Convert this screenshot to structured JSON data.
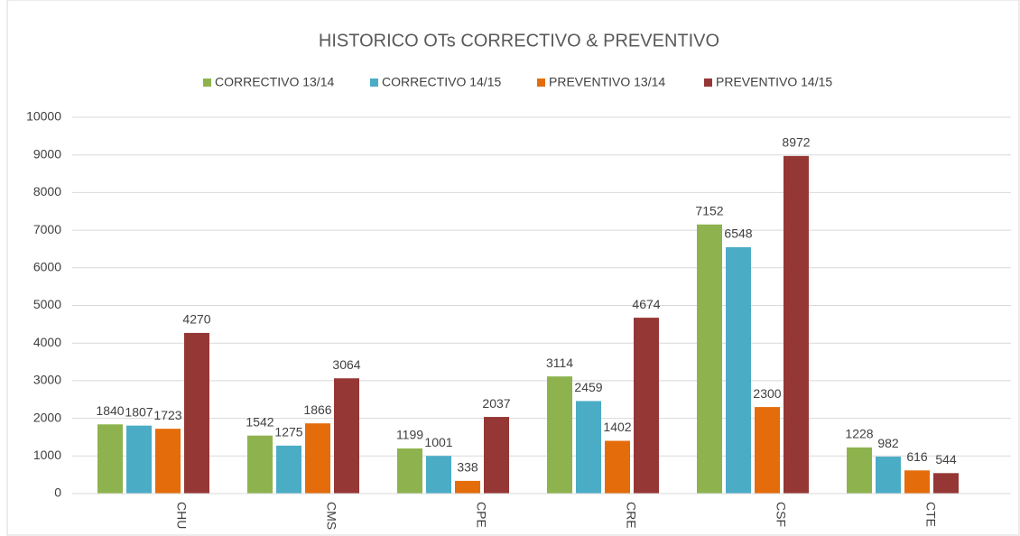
{
  "chart_data": {
    "type": "bar",
    "title": "HISTORICO OTs CORRECTIVO & PREVENTIVO",
    "categories": [
      "CHU",
      "CMS",
      "CPE",
      "CRE",
      "CSF",
      "CTE"
    ],
    "series": [
      {
        "name": "CORRECTIVO 13/14",
        "color": "#8eb34e",
        "values": [
          1840,
          1542,
          1199,
          3114,
          7152,
          1228
        ]
      },
      {
        "name": "CORRECTIVO 14/15",
        "color": "#4bacc6",
        "values": [
          1807,
          1275,
          1001,
          2459,
          6548,
          982
        ]
      },
      {
        "name": "PREVENTIVO 13/14",
        "color": "#e46c0a",
        "values": [
          1723,
          1866,
          338,
          1402,
          2300,
          616
        ]
      },
      {
        "name": "PREVENTIVO 14/15",
        "color": "#953735",
        "values": [
          4270,
          3064,
          2037,
          4674,
          8972,
          544
        ]
      }
    ],
    "ylim": [
      0,
      10000
    ],
    "yticks": [
      0,
      1000,
      2000,
      3000,
      4000,
      5000,
      6000,
      7000,
      8000,
      9000,
      10000
    ],
    "grid": true,
    "legend": "top"
  }
}
